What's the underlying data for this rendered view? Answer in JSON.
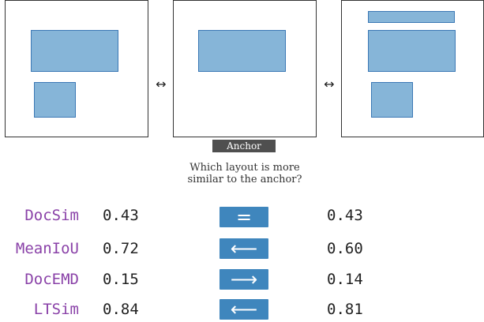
{
  "comparison": {
    "swap_symbol": "↔",
    "anchor_label": "Anchor",
    "question_line1": "Which layout is more",
    "question_line2": "similar to the anchor?"
  },
  "colors": {
    "box_fill": "#86b5d8",
    "box_border": "#3b78b5",
    "verdict_bg": "#3f86bd",
    "metric_text": "#8a42a8"
  },
  "metrics": [
    {
      "name": "DocSim",
      "left_score": "0.43",
      "verdict": "=",
      "verdict_icon": "equal-icon",
      "right_score": "0.43"
    },
    {
      "name": "MeanIoU",
      "left_score": "0.72",
      "verdict": "⟵",
      "verdict_icon": "arrow-left-icon",
      "right_score": "0.60"
    },
    {
      "name": "DocEMD",
      "left_score": "0.15",
      "verdict": "⟶",
      "verdict_icon": "arrow-right-icon",
      "right_score": "0.14"
    },
    {
      "name": "LTSim",
      "left_score": "0.84",
      "verdict": "⟵",
      "verdict_icon": "arrow-left-icon",
      "right_score": "0.81"
    }
  ]
}
